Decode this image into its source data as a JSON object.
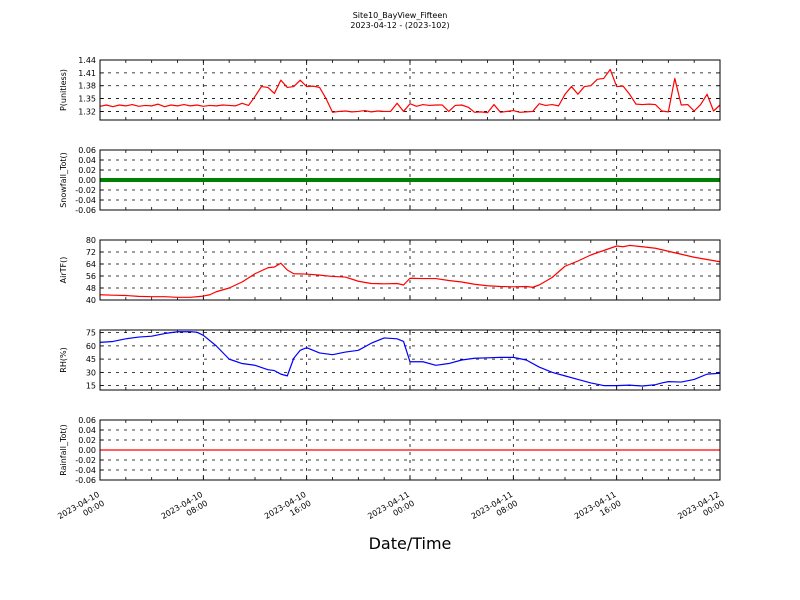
{
  "figure": {
    "title": "Site10_BayView_Fifteen",
    "subtitle": "2023-04-12 - (2023-102)",
    "xlabel": "Date/Time"
  },
  "chart_data": {
    "type": "line",
    "x_ticks": [
      [
        "2023-04-10",
        "00:00"
      ],
      [
        "2023-04-10",
        "08:00"
      ],
      [
        "2023-04-10",
        "16:00"
      ],
      [
        "2023-04-11",
        "00:00"
      ],
      [
        "2023-04-11",
        "08:00"
      ],
      [
        "2023-04-11",
        "16:00"
      ],
      [
        "2023-04-12",
        "00:00"
      ]
    ],
    "xlim_hours": [
      0,
      48
    ],
    "grid": true,
    "panels": [
      {
        "ylabel": "P(unitless)",
        "color": "#ff0000",
        "ylim": [
          1.3,
          1.44
        ],
        "yticks": [
          "1.44",
          "1.41",
          "1.38",
          "1.35",
          "1.32"
        ],
        "ytick_values": [
          1.44,
          1.41,
          1.38,
          1.35,
          1.32
        ],
        "markers": false,
        "points": [
          [
            0,
            1.332
          ],
          [
            0.5,
            1.335
          ],
          [
            1,
            1.331
          ],
          [
            1.5,
            1.335
          ],
          [
            2,
            1.333
          ],
          [
            2.5,
            1.336
          ],
          [
            3,
            1.332
          ],
          [
            3.5,
            1.334
          ],
          [
            4,
            1.333
          ],
          [
            4.5,
            1.337
          ],
          [
            5,
            1.331
          ],
          [
            5.5,
            1.335
          ],
          [
            6,
            1.333
          ],
          [
            6.5,
            1.336
          ],
          [
            7,
            1.333
          ],
          [
            7.5,
            1.335
          ],
          [
            8,
            1.332
          ],
          [
            8.5,
            1.334
          ],
          [
            9,
            1.333
          ],
          [
            9.5,
            1.335
          ],
          [
            10,
            1.334
          ],
          [
            10.5,
            1.333
          ],
          [
            11,
            1.339
          ],
          [
            11.5,
            1.334
          ],
          [
            12,
            1.355
          ],
          [
            12.5,
            1.378
          ],
          [
            13,
            1.376
          ],
          [
            13.5,
            1.362
          ],
          [
            14,
            1.393
          ],
          [
            14.5,
            1.376
          ],
          [
            15,
            1.378
          ],
          [
            15.5,
            1.393
          ],
          [
            16,
            1.378
          ],
          [
            16.5,
            1.379
          ],
          [
            17,
            1.376
          ],
          [
            17.5,
            1.35
          ],
          [
            18,
            1.318
          ],
          [
            18.5,
            1.32
          ],
          [
            19,
            1.321
          ],
          [
            19.5,
            1.319
          ],
          [
            20,
            1.32
          ],
          [
            20.5,
            1.322
          ],
          [
            21,
            1.319
          ],
          [
            21.5,
            1.321
          ],
          [
            22,
            1.32
          ],
          [
            22.5,
            1.32
          ],
          [
            23,
            1.339
          ],
          [
            23.5,
            1.32
          ],
          [
            24,
            1.338
          ],
          [
            24.5,
            1.332
          ],
          [
            25,
            1.336
          ],
          [
            25.5,
            1.334
          ],
          [
            26,
            1.335
          ],
          [
            26.5,
            1.335
          ],
          [
            27,
            1.32
          ],
          [
            27.5,
            1.334
          ],
          [
            28,
            1.335
          ],
          [
            28.5,
            1.33
          ],
          [
            29,
            1.318
          ],
          [
            29.5,
            1.319
          ],
          [
            30,
            1.317
          ],
          [
            30.5,
            1.336
          ],
          [
            31,
            1.318
          ],
          [
            31.5,
            1.32
          ],
          [
            32,
            1.322
          ],
          [
            32.5,
            1.318
          ],
          [
            33,
            1.319
          ],
          [
            33.5,
            1.32
          ],
          [
            34,
            1.338
          ],
          [
            34.5,
            1.334
          ],
          [
            35,
            1.336
          ],
          [
            35.5,
            1.333
          ],
          [
            36,
            1.36
          ],
          [
            36.5,
            1.378
          ],
          [
            37,
            1.36
          ],
          [
            37.5,
            1.378
          ],
          [
            38,
            1.38
          ],
          [
            38.5,
            1.395
          ],
          [
            39,
            1.397
          ],
          [
            39.5,
            1.418
          ],
          [
            40,
            1.378
          ],
          [
            40.5,
            1.379
          ],
          [
            41,
            1.36
          ],
          [
            41.5,
            1.337
          ],
          [
            42,
            1.336
          ],
          [
            42.5,
            1.337
          ],
          [
            43,
            1.336
          ],
          [
            43.5,
            1.321
          ],
          [
            44,
            1.319
          ],
          [
            44.5,
            1.397
          ],
          [
            45,
            1.335
          ],
          [
            45.5,
            1.336
          ],
          [
            46,
            1.321
          ],
          [
            46.5,
            1.336
          ],
          [
            47,
            1.36
          ],
          [
            47.5,
            1.321
          ],
          [
            48,
            1.335
          ]
        ]
      },
      {
        "ylabel": "Snowfall_Tot()",
        "color": "#008000",
        "ylim": [
          -0.06,
          0.06
        ],
        "yticks": [
          "0.06",
          "0.04",
          "0.02",
          "0.00",
          "-0.02",
          "-0.04",
          "-0.06"
        ],
        "ytick_values": [
          0.06,
          0.04,
          0.02,
          0.0,
          -0.02,
          -0.04,
          -0.06
        ],
        "markers": true,
        "points": [
          [
            0,
            0
          ],
          [
            48,
            0
          ]
        ]
      },
      {
        "ylabel": "AirTF()",
        "color": "#ff0000",
        "ylim": [
          40,
          80
        ],
        "yticks": [
          "80",
          "72",
          "64",
          "56",
          "48",
          "40"
        ],
        "ytick_values": [
          80,
          72,
          64,
          56,
          48,
          40
        ],
        "markers": false,
        "points": [
          [
            0,
            43.5
          ],
          [
            1,
            43.2
          ],
          [
            2,
            43
          ],
          [
            3,
            42.4
          ],
          [
            4,
            42.2
          ],
          [
            5,
            42.2
          ],
          [
            6,
            41.8
          ],
          [
            7,
            41.8
          ],
          [
            8,
            42.6
          ],
          [
            8.5,
            43.5
          ],
          [
            9,
            45.5
          ],
          [
            10,
            48
          ],
          [
            11,
            52
          ],
          [
            12,
            57.5
          ],
          [
            13,
            61.5
          ],
          [
            13.5,
            62
          ],
          [
            14,
            64.5
          ],
          [
            14.5,
            60
          ],
          [
            15,
            57.5
          ],
          [
            16,
            57.3
          ],
          [
            17,
            56.6
          ],
          [
            18,
            55.7
          ],
          [
            19,
            55.3
          ],
          [
            20,
            52.5
          ],
          [
            21,
            51
          ],
          [
            22,
            50.8
          ],
          [
            23,
            51
          ],
          [
            23.5,
            50
          ],
          [
            24,
            54.5
          ],
          [
            25,
            54.3
          ],
          [
            26,
            54.3
          ],
          [
            27,
            53
          ],
          [
            28,
            52
          ],
          [
            29,
            50.5
          ],
          [
            30,
            49.5
          ],
          [
            31,
            49
          ],
          [
            32,
            48.8
          ],
          [
            33,
            49
          ],
          [
            33.5,
            48.5
          ],
          [
            34,
            50
          ],
          [
            35,
            55
          ],
          [
            36,
            62.5
          ],
          [
            37,
            66
          ],
          [
            38,
            70
          ],
          [
            39,
            73
          ],
          [
            40,
            76
          ],
          [
            40.5,
            75.5
          ],
          [
            41,
            76.4
          ],
          [
            42,
            75.5
          ],
          [
            43,
            74.5
          ],
          [
            44,
            72.5
          ],
          [
            45,
            70.5
          ],
          [
            46,
            68.5
          ],
          [
            47,
            67
          ],
          [
            48,
            65.5
          ]
        ]
      },
      {
        "ylabel": "RH(%)",
        "color": "#0000ff",
        "ylim": [
          10,
          78
        ],
        "yticks": [
          "75",
          "60",
          "45",
          "30",
          "15"
        ],
        "ytick_values": [
          75,
          60,
          45,
          30,
          15
        ],
        "markers": false,
        "points": [
          [
            0,
            64
          ],
          [
            1,
            65
          ],
          [
            2,
            68
          ],
          [
            3,
            70
          ],
          [
            4,
            71
          ],
          [
            5,
            74
          ],
          [
            6,
            76
          ],
          [
            7,
            76
          ],
          [
            7.5,
            75.5
          ],
          [
            8,
            72
          ],
          [
            9,
            60
          ],
          [
            10,
            45
          ],
          [
            11,
            40
          ],
          [
            12,
            38
          ],
          [
            13,
            33
          ],
          [
            13.5,
            32
          ],
          [
            14,
            28
          ],
          [
            14.5,
            26
          ],
          [
            15,
            46
          ],
          [
            15.5,
            55
          ],
          [
            16,
            58
          ],
          [
            17,
            52
          ],
          [
            18,
            50
          ],
          [
            19,
            53
          ],
          [
            20,
            55
          ],
          [
            21,
            63
          ],
          [
            22,
            69
          ],
          [
            23,
            68
          ],
          [
            23.5,
            65
          ],
          [
            24,
            42
          ],
          [
            25,
            42
          ],
          [
            26,
            38
          ],
          [
            27,
            40
          ],
          [
            28,
            44
          ],
          [
            29,
            46
          ],
          [
            30,
            46.5
          ],
          [
            31,
            47
          ],
          [
            32,
            47
          ],
          [
            33,
            44
          ],
          [
            34,
            36
          ],
          [
            35,
            30
          ],
          [
            36,
            26
          ],
          [
            37,
            22
          ],
          [
            38,
            18
          ],
          [
            39,
            15
          ],
          [
            40,
            15
          ],
          [
            41,
            15.5
          ],
          [
            42,
            14.5
          ],
          [
            43,
            16
          ],
          [
            43.5,
            18
          ],
          [
            44,
            19.5
          ],
          [
            45,
            19
          ],
          [
            46,
            22
          ],
          [
            47,
            28
          ],
          [
            48,
            29
          ]
        ]
      },
      {
        "ylabel": "Rainfall_Tot()",
        "color": "#ff0000",
        "ylim": [
          -0.06,
          0.06
        ],
        "yticks": [
          "0.06",
          "0.04",
          "0.02",
          "0.00",
          "-0.02",
          "-0.04",
          "-0.06"
        ],
        "ytick_values": [
          0.06,
          0.04,
          0.02,
          0.0,
          -0.02,
          -0.04,
          -0.06
        ],
        "markers": false,
        "points": [
          [
            0,
            0
          ],
          [
            48,
            0
          ]
        ]
      }
    ]
  }
}
